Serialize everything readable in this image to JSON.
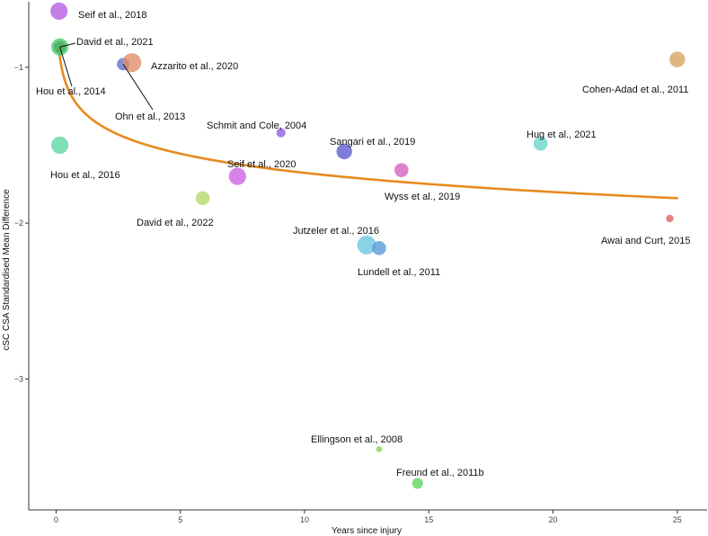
{
  "chart_data": {
    "type": "scatter",
    "title": "",
    "xlabel": "Years since injury",
    "ylabel": "cSC CSA Standardised Mean Difference",
    "xlim": [
      -1.1,
      26.2
    ],
    "ylim": [
      -3.84,
      -0.58
    ],
    "xticks": [
      0,
      5,
      10,
      15,
      20,
      25
    ],
    "yticks": [
      -1,
      -2,
      -3
    ],
    "grid": false,
    "points": [
      {
        "label": "Seif et al., 2018",
        "x": 0.12,
        "y": -0.64,
        "size": 9,
        "color": "#b45be0"
      },
      {
        "label": "David et al., 2021",
        "x": 0.15,
        "y": -0.87,
        "size": 6,
        "color": "#7a3c1a"
      },
      {
        "label": "Hou et al., 2014",
        "x": 0.15,
        "y": -0.87,
        "size": 9,
        "color": "#45cc72"
      },
      {
        "label": "Ohn et al., 2013",
        "x": 2.7,
        "y": -0.98,
        "size": 6,
        "color": "#5a6fd0"
      },
      {
        "label": "Azzarito et al., 2020",
        "x": 3.05,
        "y": -0.97,
        "size": 10,
        "color": "#de8d68"
      },
      {
        "label": "Cohen-Adad et al., 2011",
        "x": 25.0,
        "y": -0.95,
        "size": 8,
        "color": "#d9a05e"
      },
      {
        "label": "Hou et al., 2016",
        "x": 0.15,
        "y": -1.5,
        "size": 9,
        "color": "#5ed6a1"
      },
      {
        "label": "Schmit and Cole, 2004",
        "x": 9.05,
        "y": -1.42,
        "size": 4,
        "color": "#8f5be0"
      },
      {
        "label": "Sangari et al., 2019",
        "x": 11.6,
        "y": -1.54,
        "size": 8,
        "color": "#5a5ad0"
      },
      {
        "label": "Hug et al., 2021",
        "x": 19.5,
        "y": -1.49,
        "size": 7,
        "color": "#66d6c8"
      },
      {
        "label": "Seif et al., 2020",
        "x": 7.3,
        "y": -1.7,
        "size": 9,
        "color": "#cd5fe0"
      },
      {
        "label": "Wyss et al., 2019",
        "x": 13.9,
        "y": -1.66,
        "size": 7,
        "color": "#d25fbe"
      },
      {
        "label": "David et al., 2022",
        "x": 5.9,
        "y": -1.84,
        "size": 7,
        "color": "#b3d966"
      },
      {
        "label": "Awai and Curt, 2015",
        "x": 24.7,
        "y": -1.97,
        "size": 3,
        "color": "#e05d5d"
      },
      {
        "label": "Jutzeler et al., 2016",
        "x": 12.5,
        "y": -2.14,
        "size": 10,
        "color": "#66c6e0"
      },
      {
        "label": "Lundell et al., 2011",
        "x": 13.0,
        "y": -2.16,
        "size": 7,
        "color": "#5a9ad6"
      },
      {
        "label": "Ellingson et al., 2008",
        "x": 13.0,
        "y": -3.45,
        "size": 2,
        "color": "#7cd64a"
      },
      {
        "label": "Freund et al., 2011b",
        "x": 14.55,
        "y": -3.67,
        "size": 5,
        "color": "#59d659"
      }
    ],
    "fit_curve": {
      "model": "logarithmic",
      "color": "#e8891e",
      "x_start": 0.1,
      "x_end": 25,
      "y_start": -0.86,
      "y_end": -1.84
    }
  }
}
